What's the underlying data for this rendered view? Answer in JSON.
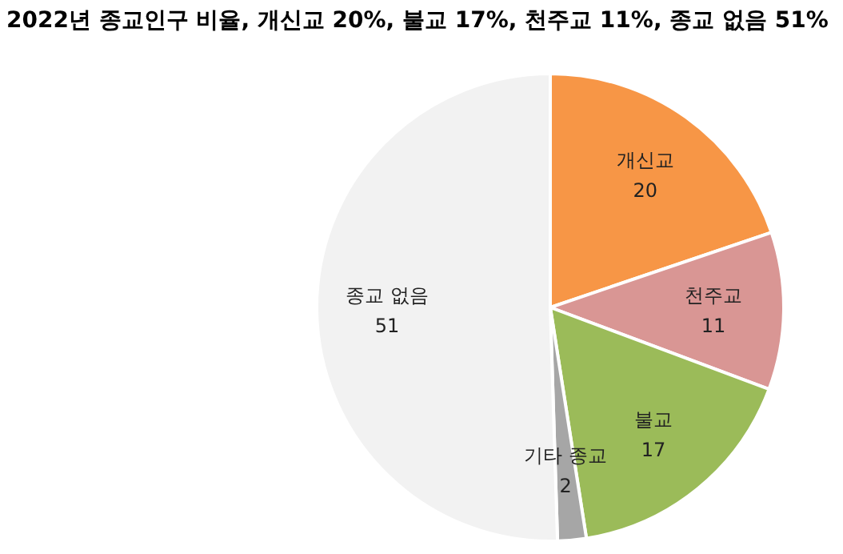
{
  "chart_data": {
    "type": "pie",
    "title": "2022년 종교인구 비율, 개신교 20%, 불교 17%, 천주교 11%, 종교 없음 51%",
    "categories": [
      "개신교",
      "천주교",
      "불교",
      "기타 종교",
      "종교 없음"
    ],
    "values": [
      20,
      11,
      17,
      2,
      51
    ],
    "colors": [
      "#f79646",
      "#d99694",
      "#9bbb59",
      "#a6a6a6",
      "#f2f2f2"
    ],
    "data_labels": true,
    "legend": false
  }
}
